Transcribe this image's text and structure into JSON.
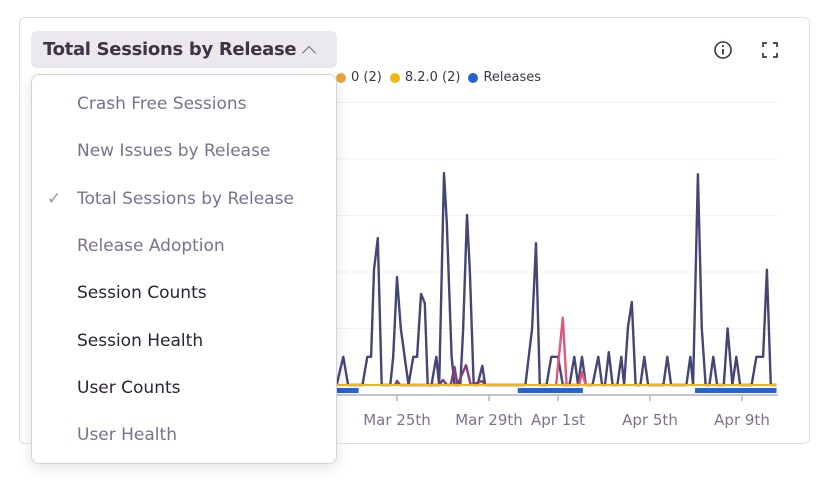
{
  "panel": {
    "title": "Total Sessions by Release",
    "info_icon": "info-icon",
    "fullscreen_icon": "expand-icon"
  },
  "legend": [
    {
      "label": "0 (2)",
      "color": "#e5a440"
    },
    {
      "label": "8.2.0 (2)",
      "color": "#f2b712"
    },
    {
      "label": "Releases",
      "color": "#2562d4"
    }
  ],
  "dropdown": {
    "items": [
      {
        "label": "Crash Free Sessions",
        "selected": false,
        "style": "muted"
      },
      {
        "label": "New Issues by Release",
        "selected": false,
        "style": "muted"
      },
      {
        "label": "Total Sessions by Release",
        "selected": true,
        "style": "muted"
      },
      {
        "label": "Release Adoption",
        "selected": false,
        "style": "muted"
      },
      {
        "label": "Session Counts",
        "selected": false,
        "style": "dark"
      },
      {
        "label": "Session Health",
        "selected": false,
        "style": "dark"
      },
      {
        "label": "User Counts",
        "selected": false,
        "style": "dark"
      },
      {
        "label": "User Health",
        "selected": false,
        "style": "muted"
      }
    ],
    "check_glyph": "✓"
  },
  "chart_data": {
    "type": "line",
    "title": "Total Sessions by Release",
    "xlabel": "",
    "ylabel": "",
    "ylim": [
      0,
      5
    ],
    "grid": true,
    "x_ticks": [
      "Mar 25th",
      "Mar 29th",
      "Apr 1st",
      "Apr 5th",
      "Apr 9th"
    ],
    "x_tick_dates": [
      "03-25 00",
      "03-29 00",
      "04-01 00",
      "04-05 00",
      "04-09 00"
    ],
    "series": [
      {
        "color": "#444674",
        "points": [
          [
            "03-22 09",
            0
          ],
          [
            "03-22 16",
            0.5
          ],
          [
            "03-22 21",
            0
          ],
          [
            "03-23 12",
            0
          ],
          [
            "03-23 17",
            0.5
          ],
          [
            "03-23 21",
            0.5
          ],
          [
            "03-24 00",
            2.04
          ],
          [
            "03-24 04",
            2.6
          ],
          [
            "03-24 08",
            0
          ],
          [
            "03-24 17",
            0
          ],
          [
            "03-24 20",
            0.5
          ],
          [
            "03-25 00",
            1.91
          ],
          [
            "03-25 04",
            1.0
          ],
          [
            "03-25 12",
            0
          ],
          [
            "03-25 17",
            0.5
          ],
          [
            "03-25 21",
            0.5
          ],
          [
            "03-26 01",
            1.61
          ],
          [
            "03-26 05",
            1.45
          ],
          [
            "03-26 08",
            0
          ],
          [
            "03-26 12",
            0
          ],
          [
            "03-26 17",
            0.5
          ],
          [
            "03-26 20",
            0
          ],
          [
            "03-27 01",
            3.75
          ],
          [
            "03-27 04",
            2.87
          ],
          [
            "03-27 09",
            0.5
          ],
          [
            "03-27 12",
            0
          ],
          [
            "03-27 18",
            0
          ],
          [
            "03-27 21",
            0.97
          ],
          [
            "03-28 01",
            3.01
          ],
          [
            "03-28 04",
            2.04
          ],
          [
            "03-28 08",
            0
          ],
          [
            "03-28 12",
            0
          ],
          [
            "03-28 17",
            0.34
          ],
          [
            "03-28 20",
            0
          ],
          [
            "03-30 14",
            0
          ],
          [
            "03-30 21",
            1.0
          ],
          [
            "03-31 01",
            2.51
          ],
          [
            "03-31 05",
            0
          ],
          [
            "03-31 12",
            0
          ],
          [
            "03-31 17",
            0.5
          ],
          [
            "04-01 00",
            0.5
          ],
          [
            "04-01 05",
            0
          ],
          [
            "04-01 12",
            0
          ],
          [
            "04-01 17",
            0.5
          ],
          [
            "04-01 21",
            0
          ],
          [
            "04-02 01",
            0.5
          ],
          [
            "04-02 05",
            0
          ],
          [
            "04-02 12",
            0
          ],
          [
            "04-02 18",
            0.5
          ],
          [
            "04-02 22",
            0
          ],
          [
            "04-03 01",
            0
          ],
          [
            "04-03 05",
            0.58
          ],
          [
            "04-03 09",
            0
          ],
          [
            "04-03 14",
            0
          ],
          [
            "04-03 18",
            0.5
          ],
          [
            "04-03 21",
            0
          ],
          [
            "04-04 01",
            1.03
          ],
          [
            "04-04 05",
            1.47
          ],
          [
            "04-04 09",
            0
          ],
          [
            "04-04 14",
            0
          ],
          [
            "04-04 18",
            0.5
          ],
          [
            "04-04 22",
            0
          ],
          [
            "04-05 14",
            0
          ],
          [
            "04-05 18",
            0.5
          ],
          [
            "04-05 22",
            0
          ],
          [
            "04-06 14",
            0
          ],
          [
            "04-06 18",
            0.5
          ],
          [
            "04-06 21",
            0
          ],
          [
            "04-07 02",
            3.73
          ],
          [
            "04-07 06",
            1.0
          ],
          [
            "04-07 10",
            0
          ],
          [
            "04-07 14",
            0
          ],
          [
            "04-07 18",
            0.5
          ],
          [
            "04-07 22",
            0
          ],
          [
            "04-08 05",
            0
          ],
          [
            "04-08 09",
            1.0
          ],
          [
            "04-08 14",
            0
          ],
          [
            "04-08 18",
            0.5
          ],
          [
            "04-08 22",
            0
          ],
          [
            "04-09 10",
            0
          ],
          [
            "04-09 15",
            0.5
          ],
          [
            "04-09 22",
            0.5
          ],
          [
            "04-10 02",
            2.04
          ],
          [
            "04-10 06",
            0
          ],
          [
            "04-10 12",
            0
          ]
        ]
      },
      {
        "color": "#7b3e7e",
        "points": [
          [
            "03-24 22",
            0
          ],
          [
            "03-25 00",
            0.07
          ],
          [
            "03-25 03",
            0
          ],
          [
            "03-26 20",
            0
          ],
          [
            "03-27 00",
            0.09
          ],
          [
            "03-27 04",
            0
          ],
          [
            "03-27 08",
            0
          ],
          [
            "03-27 12",
            0.32
          ],
          [
            "03-27 15",
            0
          ],
          [
            "03-28 00",
            0.35
          ],
          [
            "03-28 05",
            0
          ],
          [
            "03-28 17",
            0.07
          ],
          [
            "03-28 20",
            0
          ]
        ]
      },
      {
        "color": "#e1567c",
        "points": [
          [
            "03-31 22",
            0
          ],
          [
            "04-01 05",
            1.19
          ],
          [
            "04-01 09",
            0
          ],
          [
            "04-01 22",
            0
          ],
          [
            "04-02 01",
            0.23
          ],
          [
            "04-02 05",
            0
          ]
        ]
      },
      {
        "name": "8.2.0 (2)",
        "color": "#f2b712",
        "points": [
          [
            "03-22 09",
            0
          ],
          [
            "04-10 12",
            0
          ]
        ]
      }
    ],
    "releases": {
      "name": "Releases",
      "color": "#2562d4",
      "ranges": [
        [
          "03-22 09",
          "03-23 08"
        ],
        [
          "03-30 06",
          "04-02 02"
        ],
        [
          "04-06 23",
          "04-10 12"
        ]
      ]
    }
  }
}
